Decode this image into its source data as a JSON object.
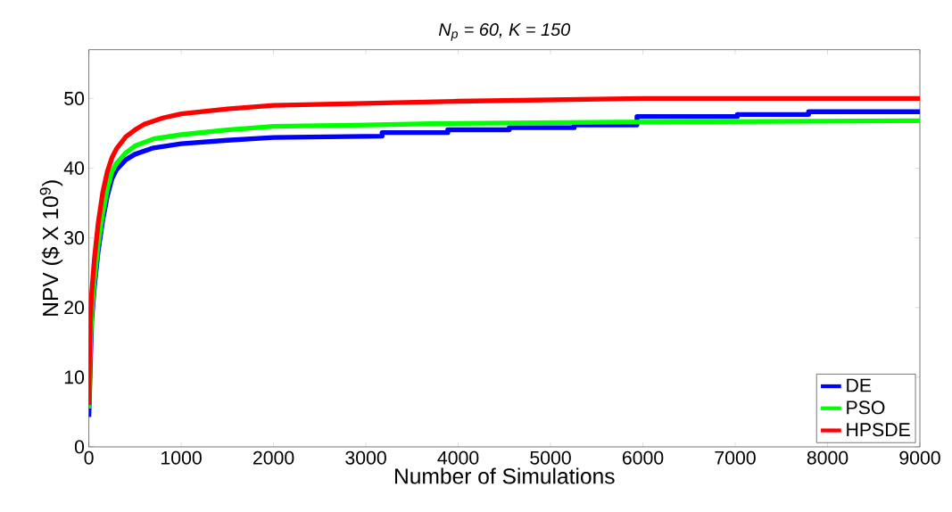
{
  "chart_data": {
    "type": "line",
    "title": "N$_{p}$ = 60, K = 150",
    "xlabel": "Number of Simulations",
    "ylabel": "NPV ($ X 10$^{9}$)",
    "xlim": [
      0,
      9000
    ],
    "ylim": [
      0,
      57
    ],
    "xticks": [
      0,
      1000,
      2000,
      3000,
      4000,
      5000,
      6000,
      7000,
      8000,
      9000
    ],
    "yticks": [
      0,
      10,
      20,
      30,
      40,
      50
    ],
    "grid": false,
    "legend": "bottom right",
    "marker": "none",
    "line_style": "solid",
    "series": [
      {
        "name": "DE",
        "color": "#0000ff",
        "x": [
          0,
          5,
          15,
          30,
          60,
          100,
          150,
          200,
          250,
          300,
          400,
          500,
          700,
          1000,
          1500,
          2000,
          3176,
          3176,
          3887,
          3887,
          4553,
          4553,
          5256,
          5256,
          5936,
          5936,
          7023,
          7023,
          7795,
          7795,
          9000
        ],
        "values": [
          4.3,
          null,
          null,
          18,
          23,
          28,
          32.5,
          36,
          38.5,
          39.8,
          41.2,
          42,
          42.9,
          43.5,
          44.0,
          44.4,
          44.6,
          45.1,
          45.1,
          45.5,
          45.5,
          45.8,
          45.8,
          46.2,
          46.2,
          47.4,
          47.4,
          47.7,
          47.7,
          48.1,
          48.1
        ]
      },
      {
        "name": "PSO",
        "color": "#00ff00",
        "x": [
          0,
          5,
          15,
          30,
          60,
          100,
          150,
          200,
          250,
          300,
          400,
          500,
          700,
          1000,
          1500,
          2000,
          3000,
          3820,
          5727,
          9000
        ],
        "values": [
          5.5,
          null,
          14,
          19,
          24,
          29,
          33.5,
          37,
          39.5,
          40.7,
          42.2,
          43.2,
          44.2,
          44.8,
          45.5,
          46.0,
          46.2,
          46.4,
          46.6,
          46.8
        ]
      },
      {
        "name": "HPSDE",
        "color": "#ff0000",
        "x": [
          0,
          5,
          15,
          30,
          60,
          100,
          150,
          200,
          250,
          300,
          400,
          500,
          600,
          800,
          1000,
          1500,
          2000,
          3000,
          4000,
          6000,
          9000
        ],
        "values": [
          6,
          12,
          18,
          22,
          27,
          32,
          36.5,
          39.5,
          41.5,
          42.8,
          44.5,
          45.5,
          46.3,
          47.2,
          47.8,
          48.5,
          49.0,
          49.3,
          49.6,
          50.0,
          50.0
        ]
      }
    ]
  }
}
